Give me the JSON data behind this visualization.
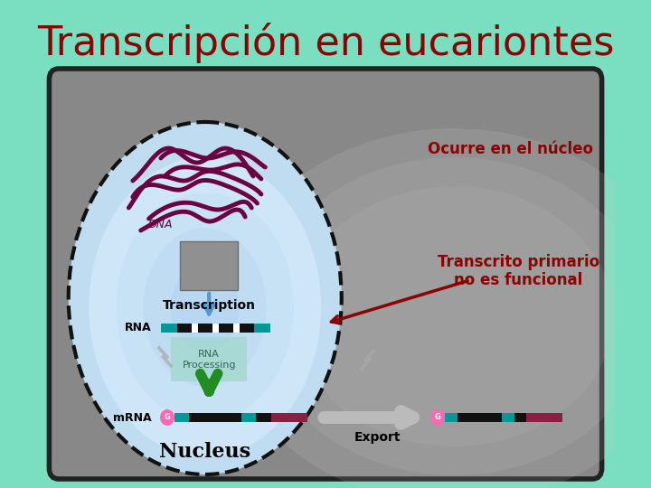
{
  "title": "Transcripción en eucariontes",
  "title_color": "#8B0000",
  "title_fontsize": 32,
  "bg_color": "#7ADFC0",
  "cell_bg": "#909090",
  "label_DNA": "DNA",
  "label_Transcription": "Transcription",
  "label_RNA": "RNA",
  "label_RNA_Processing": "RNA\nProcessing",
  "label_mRNA": "mRNA",
  "label_Nucleus": "Nucleus",
  "label_Export": "Export",
  "label_ocurre": "Ocurre en el núcleo",
  "label_transcrito": "Transcrito primario\nno es funcional",
  "annotation_color": "#8B0000",
  "dna_color": "#6B0040",
  "green_color": "#228B22"
}
